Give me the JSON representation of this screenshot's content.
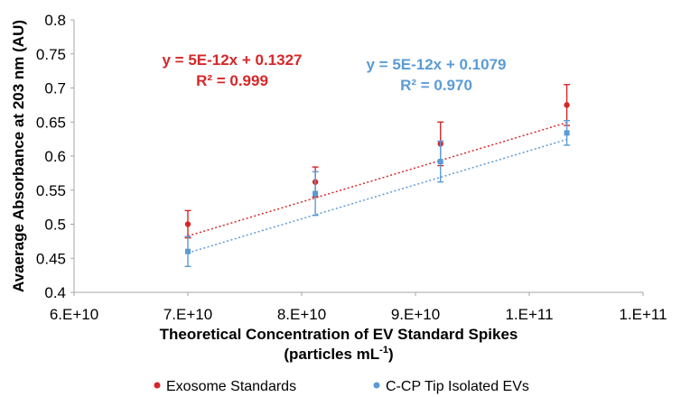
{
  "chart_data": {
    "type": "scatter",
    "xlabel_line1": "Theoretical Concentration of EV Standard Spikes",
    "xlabel_line2_prefix": "(particles mL",
    "xlabel_line2_sup": "-1",
    "xlabel_line2_suffix": ")",
    "ylabel": "Avaerage Absorbance at 203 nm (AU)",
    "xlim": [
      60000000000,
      110000000000
    ],
    "ylim": [
      0.4,
      0.8
    ],
    "x_ticks": [
      {
        "value": 60000000000,
        "label": "6.E+10"
      },
      {
        "value": 70000000000,
        "label": "7.E+10"
      },
      {
        "value": 80000000000,
        "label": "8.E+10"
      },
      {
        "value": 90000000000,
        "label": "9.E+10"
      },
      {
        "value": 100000000000,
        "label": "1.E+11"
      },
      {
        "value": 110000000000,
        "label": "1.E+11"
      }
    ],
    "y_ticks": [
      {
        "value": 0.4,
        "label": "0.4"
      },
      {
        "value": 0.45,
        "label": "0.45"
      },
      {
        "value": 0.5,
        "label": "0.5"
      },
      {
        "value": 0.55,
        "label": "0.55"
      },
      {
        "value": 0.6,
        "label": "0.6"
      },
      {
        "value": 0.65,
        "label": "0.65"
      },
      {
        "value": 0.7,
        "label": "0.7"
      },
      {
        "value": 0.75,
        "label": "0.75"
      },
      {
        "value": 0.8,
        "label": "0.8"
      }
    ],
    "grid": false,
    "legend_position": "bottom",
    "series": [
      {
        "name": "Exosome Standards",
        "color": "#d62728",
        "points": [
          {
            "x": 70000000000,
            "y": 0.5,
            "err": 0.02
          },
          {
            "x": 81200000000,
            "y": 0.562,
            "err": 0.022
          },
          {
            "x": 92200000000,
            "y": 0.618,
            "err": 0.032
          },
          {
            "x": 103300000000,
            "y": 0.675,
            "err": 0.03
          }
        ],
        "trendline": {
          "slope": 5e-12,
          "intercept": 0.1327,
          "equation": "y = 5E-12x + 0.1327",
          "r2": "R² = 0.999"
        }
      },
      {
        "name": "C-CP Tip Isolated EVs",
        "color": "#5b9bd5",
        "points": [
          {
            "x": 70000000000,
            "y": 0.46,
            "err": 0.022
          },
          {
            "x": 81200000000,
            "y": 0.545,
            "err": 0.032
          },
          {
            "x": 92200000000,
            "y": 0.592,
            "err": 0.03
          },
          {
            "x": 103300000000,
            "y": 0.634,
            "err": 0.018
          }
        ],
        "trendline": {
          "slope": 5e-12,
          "intercept": 0.1079,
          "equation": "y = 5E-12x + 0.1079",
          "r2": "R² = 0.970"
        }
      }
    ]
  }
}
